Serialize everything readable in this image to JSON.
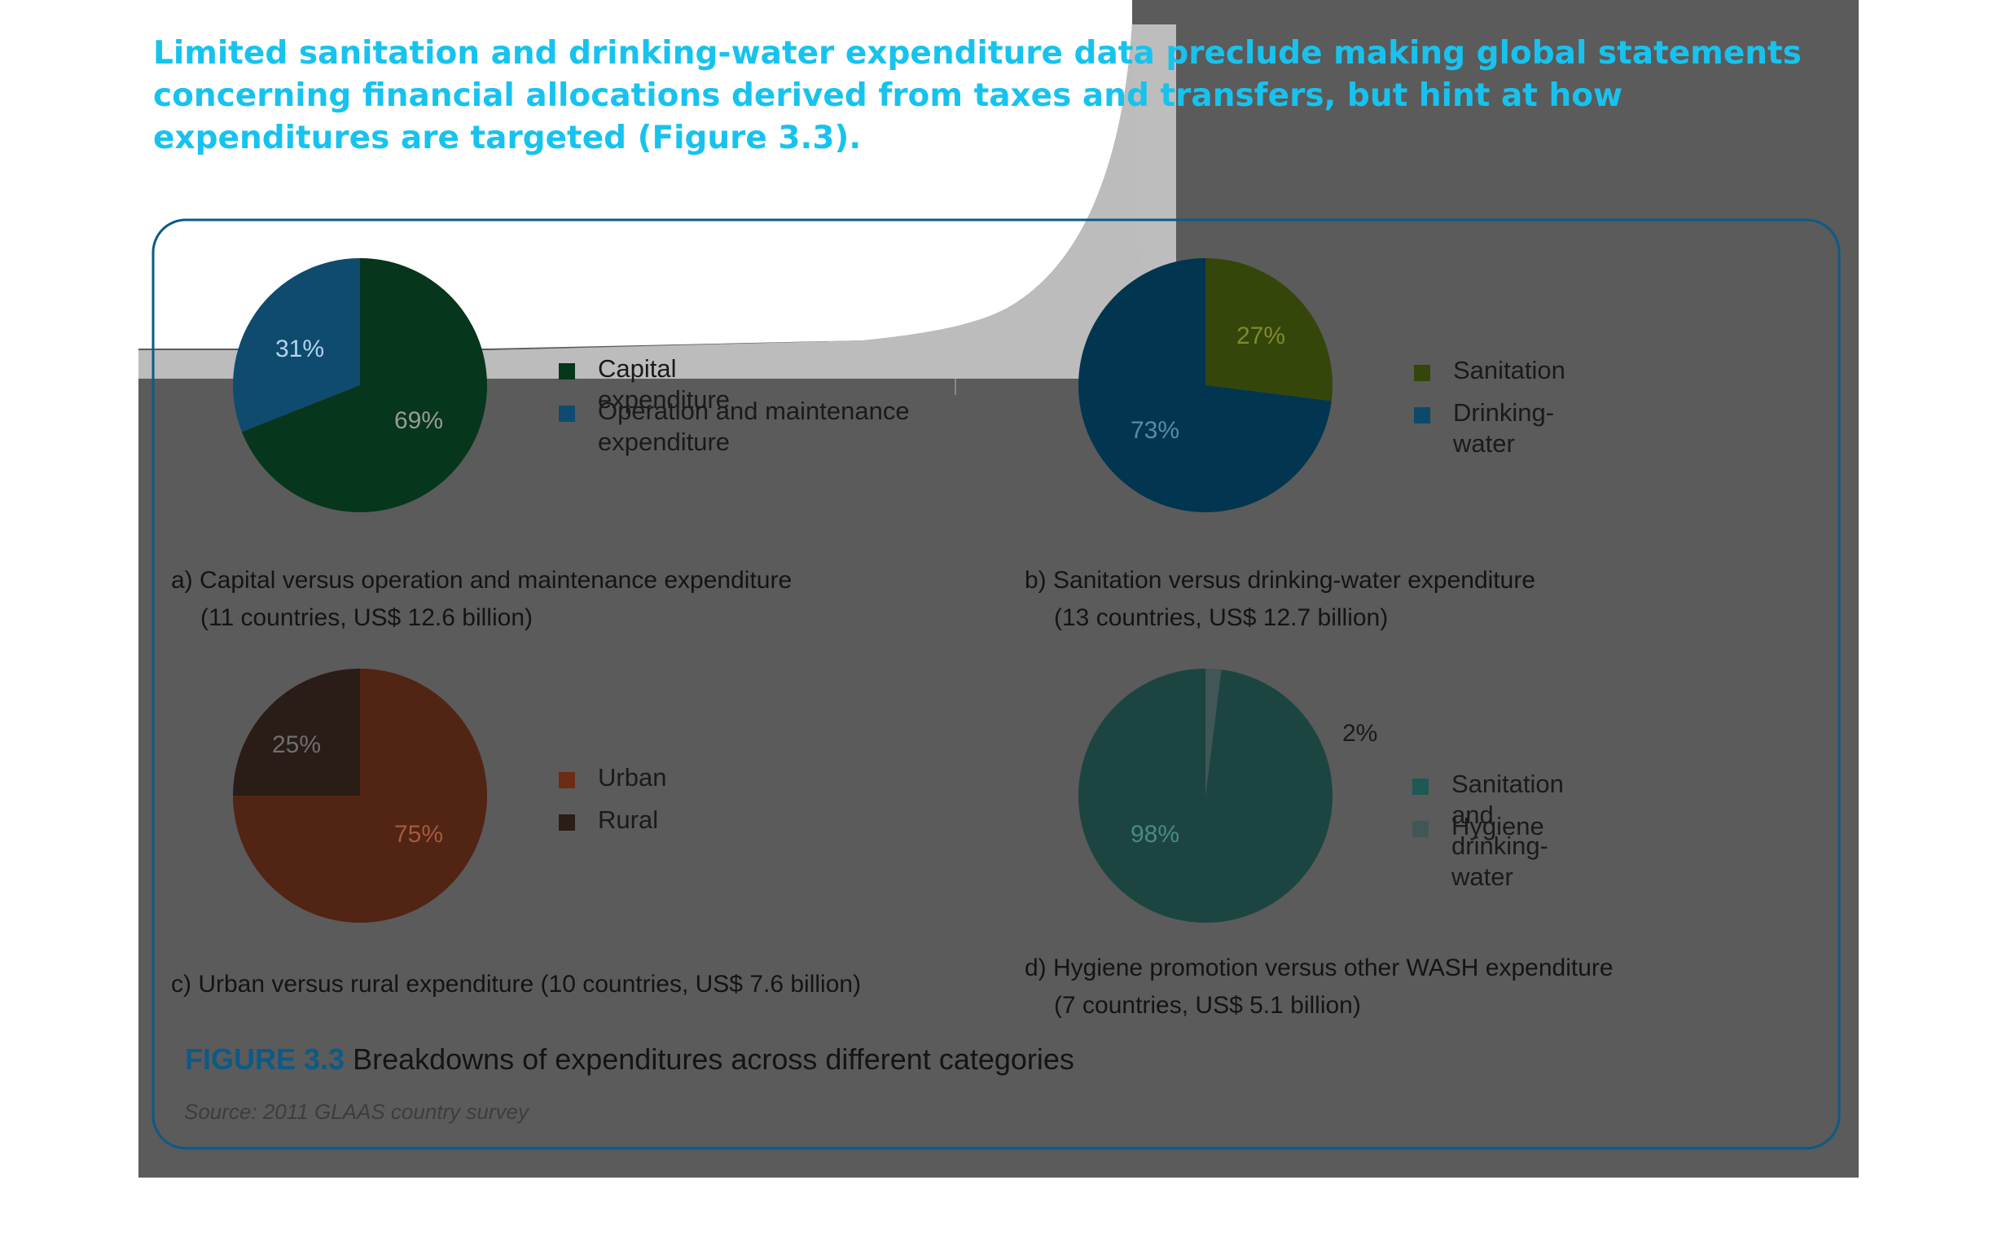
{
  "intro_text": "Limited sanitation and drinking-water expenditure data preclude making global statements concerning financial allocations derived from taxes and transfers, but hint at how expenditures are targeted (Figure 3.3).",
  "figure": {
    "number": "FIGURE 3.3",
    "title": "Breakdowns of expenditures across different categories",
    "source": "Source: 2011 GLAAS country survey"
  },
  "chart_data": [
    {
      "type": "pie",
      "panel": "a",
      "caption_line1": "a) Capital versus operation and maintenance expenditure",
      "caption_line2": "(11 countries, US$ 12.6 billion)",
      "slices": [
        {
          "label": "Operation and maintenance expenditure",
          "value": 31,
          "value_label": "31%",
          "color": "#0f4b6e"
        },
        {
          "label": "Capital expenditure",
          "value": 69,
          "value_label": "69%",
          "color": "#06361c"
        }
      ],
      "legend": [
        "Capital expenditure",
        "Operation and maintenance expenditure"
      ],
      "legend_line1": "Capital expenditure",
      "legend_line2": "Operation and maintenance expenditure",
      "legend_colors": [
        "#06361c",
        "#0f4b6e"
      ]
    },
    {
      "type": "pie",
      "panel": "b",
      "caption_line1": "b) Sanitation versus drinking-water expenditure",
      "caption_line2": "(13 countries, US$ 12.7 billion)",
      "slices": [
        {
          "label": "Sanitation",
          "value": 27,
          "value_label": "27%",
          "color": "#35460a"
        },
        {
          "label": "Drinking-water",
          "value": 73,
          "value_label": "73%",
          "color": "#02354f"
        }
      ],
      "legend": [
        "Sanitation",
        "Drinking-water"
      ],
      "legend_colors": [
        "#35460a",
        "#0b4a6c"
      ]
    },
    {
      "type": "pie",
      "panel": "c",
      "caption_line1": "c) Urban versus rural expenditure (10 countries, US$ 7.6 billion)",
      "caption_line2": "",
      "slices": [
        {
          "label": "Urban",
          "value": 75,
          "value_label": "75%",
          "color": "#522414"
        },
        {
          "label": "Rural",
          "value": 25,
          "value_label": "25%",
          "color": "#2a1c17"
        }
      ],
      "legend": [
        "Urban",
        "Rural"
      ],
      "legend_colors": [
        "#6a2d14",
        "#2a1c17"
      ]
    },
    {
      "type": "pie",
      "panel": "d",
      "caption_line1": "d) Hygiene promotion versus other WASH expenditure",
      "caption_line2": "(7 countries, US$ 5.1 billion)",
      "slices": [
        {
          "label": "Sanitation and drinking-water",
          "value": 98,
          "value_label": "98%",
          "color": "#1c4541"
        },
        {
          "label": "Hygiene",
          "value": 2,
          "value_label": "2%",
          "color": "#415657"
        }
      ],
      "legend": [
        "Sanitation and drinking-water",
        "Hygiene"
      ],
      "legend_colors": [
        "#1d5a53",
        "#415657"
      ]
    }
  ]
}
